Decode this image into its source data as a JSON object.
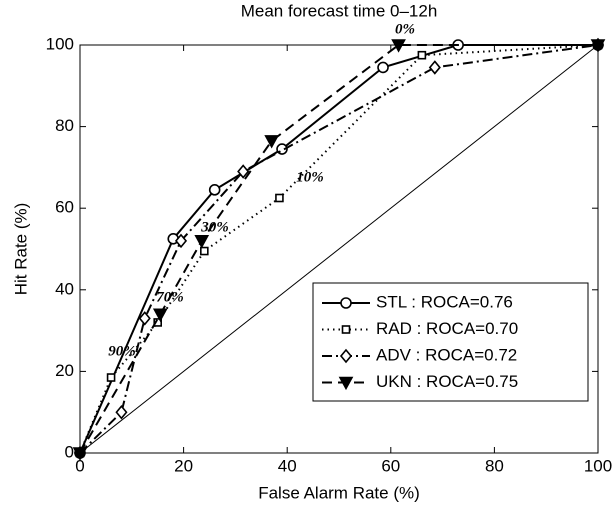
{
  "chart_data": {
    "type": "line",
    "title": "Mean forecast time 0–12h",
    "x_label": "False Alarm Rate (%)",
    "y_label": "Hit Rate (%)",
    "xlim": [
      0,
      100
    ],
    "xticks": [
      0,
      20,
      40,
      60,
      80,
      100
    ],
    "ylim": [
      0,
      100
    ],
    "yticks": [
      0,
      20,
      40,
      60,
      80,
      100
    ],
    "grid": false,
    "diagonal": true,
    "legend_position": "lower right",
    "annotations": [
      "0%",
      "10%",
      "30%",
      "70%",
      "90%"
    ],
    "series": [
      {
        "name": "STL : ROCA=0.76",
        "color": "#000000",
        "dash": "solid",
        "marker": "circle",
        "x": [
          0,
          18,
          26,
          39,
          58.5,
          73,
          100
        ],
        "values": [
          0,
          52.5,
          64.5,
          74.5,
          94.5,
          100,
          100
        ]
      },
      {
        "name": "RAD : ROCA=0.70",
        "color": "#000000",
        "dash": "dotted",
        "marker": "square",
        "x": [
          0,
          6,
          15,
          24,
          38.5,
          66,
          100
        ],
        "values": [
          0,
          18.5,
          32,
          49.5,
          62.5,
          97.5,
          100
        ]
      },
      {
        "name": "ADV : ROCA=0.72",
        "color": "#000000",
        "dash": "dashdot",
        "marker": "diamond",
        "x": [
          0,
          8,
          12.5,
          19.5,
          31.5,
          68.5,
          100
        ],
        "values": [
          0,
          10,
          33,
          52,
          69,
          94.5,
          100
        ]
      },
      {
        "name": "UKN : ROCA=0.75",
        "color": "#000000",
        "dash": "dashed",
        "marker": "triangle-down",
        "x": [
          0,
          15.5,
          23.5,
          37,
          61.5,
          100
        ],
        "values": [
          0,
          34,
          52,
          76.5,
          100,
          100
        ]
      }
    ]
  }
}
